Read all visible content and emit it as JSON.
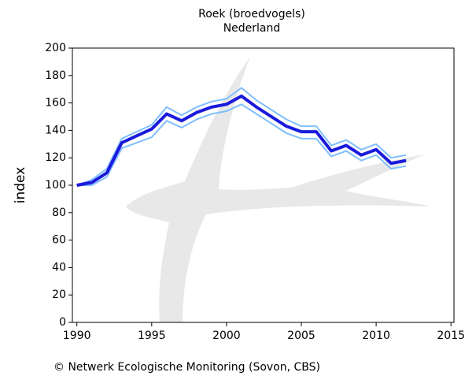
{
  "chart_data": {
    "type": "line",
    "title": "Roek (broedvogels)",
    "subtitle": "Nederland",
    "y_label": "index",
    "footer": "© Netwerk Ecologische Monitoring (Sovon, CBS)",
    "x": [
      1990,
      1991,
      1992,
      1993,
      1994,
      1995,
      1996,
      1997,
      1998,
      1999,
      2000,
      2001,
      2002,
      2003,
      2004,
      2005,
      2006,
      2007,
      2008,
      2009,
      2010,
      2011,
      2012
    ],
    "series": [
      {
        "color": "#7fbfff",
        "width": 2,
        "values": [
          100,
          104,
          112,
          134,
          139,
          144,
          157,
          151,
          157,
          161,
          163,
          171,
          162,
          155,
          148,
          143,
          143,
          129,
          133,
          126,
          130,
          120,
          122
        ]
      },
      {
        "color": "#7fbfff",
        "width": 2,
        "values": [
          100,
          100,
          106,
          127,
          131,
          135,
          147,
          142,
          148,
          152,
          154,
          159,
          152,
          145,
          138,
          134,
          134,
          121,
          125,
          118,
          122,
          112,
          114
        ]
      },
      {
        "color": "#1a1adc",
        "width": 4,
        "values": [
          100,
          102,
          109,
          131,
          136,
          141,
          152,
          147,
          153,
          157,
          159,
          165,
          157,
          150,
          143,
          139,
          139,
          125,
          129,
          122,
          126,
          116,
          118
        ]
      }
    ],
    "xlim": [
      1989.7,
      2015.2
    ],
    "xticks": [
      1990,
      1995,
      2000,
      2005,
      2010,
      2015
    ],
    "ylim": [
      0,
      200
    ],
    "yticks": [
      0,
      20,
      40,
      60,
      80,
      100,
      120,
      140,
      160,
      180,
      200
    ],
    "grid": false
  }
}
